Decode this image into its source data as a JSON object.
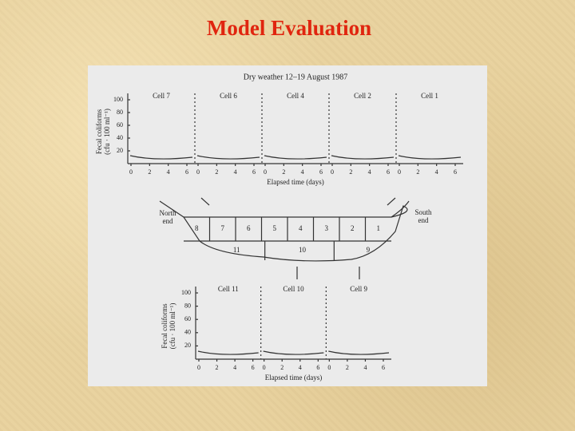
{
  "title": "Model Evaluation",
  "figure": {
    "heading": "Dry weather 12–19 August 1987",
    "y_axis_label": [
      "Fecal coliforms",
      "(cfu · 100 ml⁻¹)"
    ],
    "x_axis_label": "Elapsed time (days)",
    "yticks": [
      "100",
      "80",
      "60",
      "40",
      "20"
    ],
    "xticks": [
      "0",
      "2",
      "4",
      "6"
    ],
    "top_cells": [
      "Cell 7",
      "Cell 6",
      "Cell 4",
      "Cell 2",
      "Cell 1"
    ],
    "bottom_cells": [
      "Cell 11",
      "Cell 10",
      "Cell 9"
    ],
    "diagram": {
      "north_label": [
        "North",
        "end"
      ],
      "south_label": [
        "South",
        "end"
      ],
      "upper_cells": [
        "8",
        "7",
        "6",
        "5",
        "4",
        "3",
        "2",
        "1"
      ],
      "lower_cells": [
        "11",
        "10",
        "9"
      ]
    }
  }
}
